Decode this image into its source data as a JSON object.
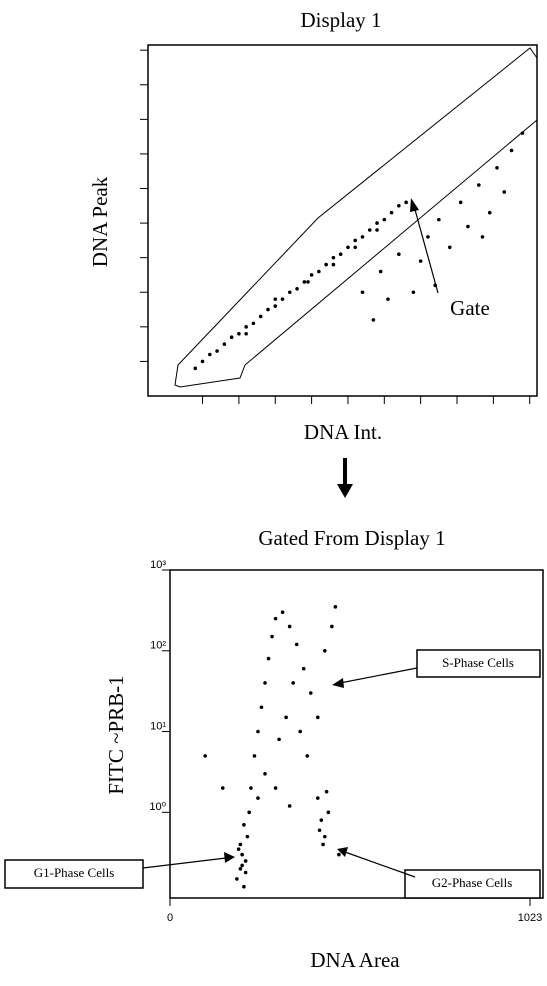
{
  "chart_data": [
    {
      "type": "scatter",
      "title": "Display 1",
      "x_label": "DNA Int.",
      "y_label": "DNA Peak",
      "annotations": [
        "Gate"
      ],
      "color": "#000000",
      "xlim": [
        -0.5,
        10.2
      ],
      "ylim": [
        0,
        10.15
      ],
      "xticks": [
        1,
        2,
        3,
        4,
        5,
        6,
        7,
        8,
        9,
        10
      ],
      "yticks": [
        1,
        2,
        3,
        4,
        5,
        6,
        7,
        8,
        9,
        10
      ],
      "x": [
        0.8,
        1.0,
        1.2,
        1.4,
        1.6,
        1.8,
        2.0,
        2.2,
        2.4,
        2.6,
        2.8,
        3.0,
        3.2,
        3.4,
        3.6,
        3.8,
        4.0,
        4.2,
        4.4,
        4.6,
        4.8,
        5.0,
        5.2,
        5.4,
        5.6,
        5.8,
        6.0,
        6.2,
        6.4,
        6.6,
        2.2,
        3.0,
        3.9,
        4.6,
        5.2,
        5.8,
        5.4,
        5.9,
        6.1,
        6.4,
        7.0,
        7.2,
        7.5,
        7.8,
        8.1,
        8.3,
        8.6,
        8.9,
        9.1,
        9.3,
        5.7,
        6.8,
        7.4,
        8.7,
        9.5,
        9.8
      ],
      "y": [
        0.8,
        1.0,
        1.2,
        1.3,
        1.5,
        1.7,
        1.8,
        2.0,
        2.1,
        2.3,
        2.5,
        2.6,
        2.8,
        3.0,
        3.1,
        3.3,
        3.5,
        3.6,
        3.8,
        4.0,
        4.1,
        4.3,
        4.5,
        4.6,
        4.8,
        5.0,
        5.1,
        5.3,
        5.5,
        5.6,
        1.8,
        2.8,
        3.3,
        3.8,
        4.3,
        4.8,
        3.0,
        3.6,
        2.8,
        4.1,
        3.9,
        4.6,
        5.1,
        4.3,
        5.6,
        4.9,
        6.1,
        5.3,
        6.6,
        5.9,
        2.2,
        3.0,
        3.2,
        4.6,
        7.1,
        7.6
      ]
    },
    {
      "type": "scatter",
      "title": "Gated From Display 1",
      "x_label": "DNA Area",
      "y_label": "FITC ~PRB-1",
      "annotations": [
        "S-Phase Cells",
        "G1-Phase Cells",
        "G2-Phase Cells"
      ],
      "color": "#000000",
      "log_y": true,
      "xlim": [
        0,
        1060
      ],
      "ylim": [
        0.087,
        1000
      ],
      "xticks": [
        0,
        1023
      ],
      "yticks": [
        {
          "value": 1,
          "label": "10⁰"
        },
        {
          "value": 10,
          "label": "10¹"
        },
        {
          "value": 100,
          "label": "10²"
        },
        {
          "value": 1000,
          "label": "10³"
        }
      ],
      "x": [
        190,
        200,
        205,
        210,
        215,
        200,
        220,
        210,
        225,
        215,
        205,
        195,
        230,
        240,
        250,
        260,
        270,
        280,
        290,
        300,
        320,
        340,
        360,
        380,
        400,
        420,
        440,
        460,
        470,
        310,
        330,
        350,
        370,
        390,
        250,
        270,
        300,
        340,
        420,
        430,
        440,
        450,
        425,
        445,
        435,
        480,
        150,
        100
      ],
      "y": [
        0.15,
        0.2,
        0.3,
        0.12,
        0.25,
        0.4,
        0.5,
        0.7,
        1.0,
        0.18,
        0.22,
        0.35,
        2,
        5,
        10,
        20,
        40,
        80,
        150,
        250,
        300,
        200,
        120,
        60,
        30,
        15,
        100,
        200,
        350,
        8,
        15,
        40,
        10,
        5,
        1.5,
        3,
        2,
        1.2,
        1.5,
        0.8,
        0.5,
        1,
        0.6,
        1.8,
        0.4,
        0.3,
        2,
        5
      ]
    }
  ]
}
